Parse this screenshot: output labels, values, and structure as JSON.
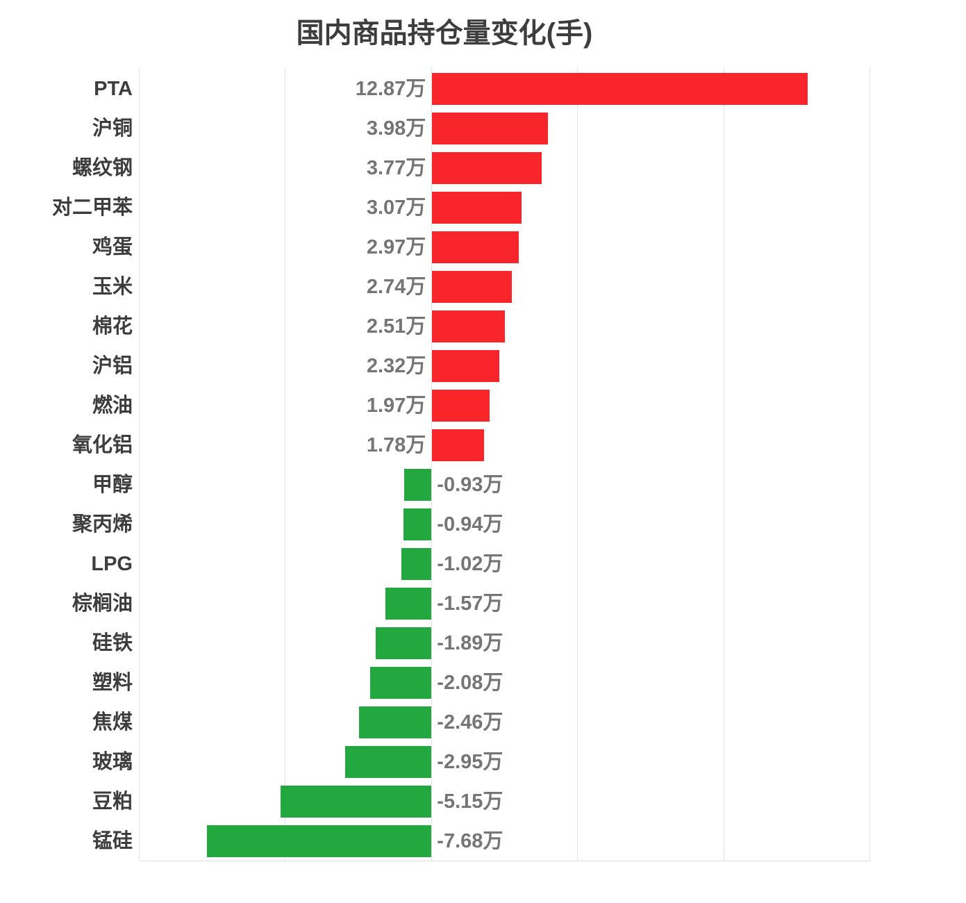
{
  "title": "国内商品持仓量变化(手)",
  "colors": {
    "positive_bar": "#f8262b",
    "negative_bar": "#22a83e",
    "gridline": "#e4e4e4",
    "axis_line": "#dcdcdc",
    "title_text": "#3d3d3d",
    "category_text": "#3d3d3d",
    "value_text": "#757575"
  },
  "chart_data": {
    "type": "bar",
    "orientation": "horizontal",
    "title": "国内商品持仓量变化(手)",
    "unit": "万",
    "categories": [
      "PTA",
      "沪铜",
      "螺纹钢",
      "对二甲苯",
      "鸡蛋",
      "玉米",
      "棉花",
      "沪铝",
      "燃油",
      "氧化铝",
      "甲醇",
      "聚丙烯",
      "LPG",
      "棕榈油",
      "硅铁",
      "塑料",
      "焦煤",
      "玻璃",
      "豆粕",
      "锰硅"
    ],
    "values": [
      12.87,
      3.98,
      3.77,
      3.07,
      2.97,
      2.74,
      2.51,
      2.32,
      1.97,
      1.78,
      -0.93,
      -0.94,
      -1.02,
      -1.57,
      -1.89,
      -2.08,
      -2.46,
      -2.95,
      -5.15,
      -7.68
    ],
    "value_labels": [
      "12.87万",
      "3.98万",
      "3.77万",
      "3.07万",
      "2.97万",
      "2.74万",
      "2.51万",
      "2.32万",
      "1.97万",
      "1.78万",
      "-0.93万",
      "-0.94万",
      "-1.02万",
      "-1.57万",
      "-1.89万",
      "-2.08万",
      "-2.46万",
      "-2.95万",
      "-5.15万",
      "-7.68万"
    ],
    "xlim": [
      -10,
      15
    ],
    "gridline_values": [
      -10,
      -5,
      0,
      5,
      10,
      15
    ],
    "grid": "on",
    "legend": "none",
    "xlabel": "",
    "ylabel": ""
  }
}
